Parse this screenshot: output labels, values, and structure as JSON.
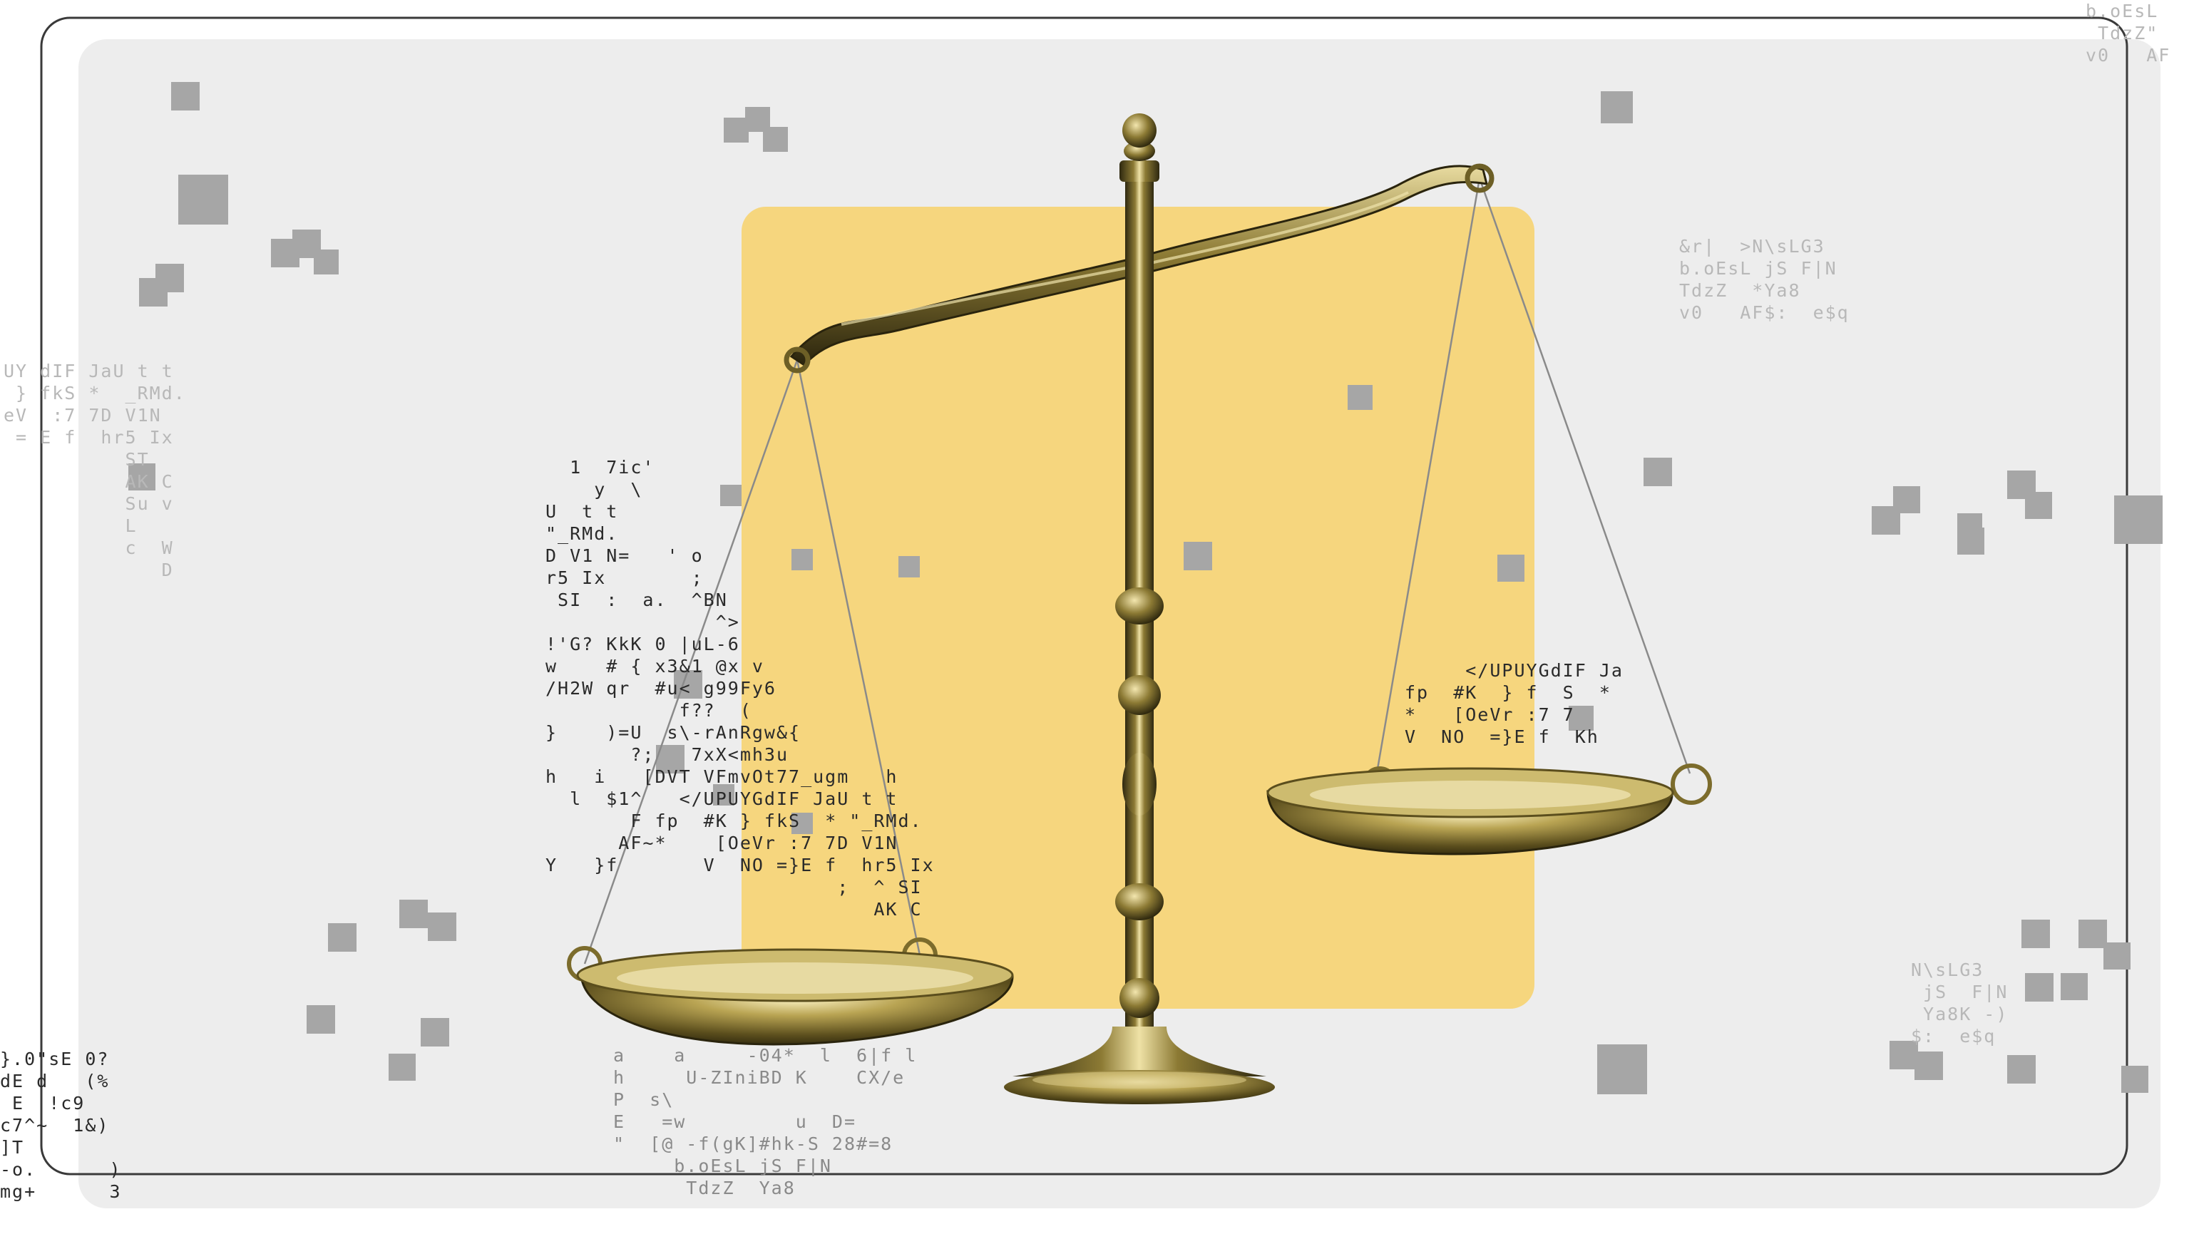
{
  "colors": {
    "page_background": "#ffffff",
    "panel_background": "#ededed",
    "panel_border": "#3a3a3a",
    "accent_yellow": "#f6d67e",
    "pixel_squares": "#a6a6a6",
    "glyph_dark": "#2a2a2a",
    "glyph_faint": "#c9c9c9",
    "brass_dark": "#3b3414",
    "brass_mid": "#8c7a34",
    "brass_light": "#e6d79a"
  },
  "illustration": {
    "subject": "balance-scale-icon",
    "tilt": "left-pan-lower",
    "glyph_clusters": {
      "left_pan": [
        "  1  7ic'",
        "    y  \\",
        "U  t t",
        "\"_RMd.",
        "D V1 N=   ' o",
        "r5 Ix       ;",
        " SI  :  a.  ^BN",
        "              ^>",
        "!'G? KkK 0 |uL-6",
        "w    # { x3&1 @x v",
        "/H2W qr  #u< g99Fy6",
        "           f??  (",
        "}    )=U  s\\-rAnRgw&{",
        "       ?;   7xX<mh3u",
        "h   i   [DVT VFmvOt77_ugm   h",
        "  l  $1^   </UPUYGdIF JaU t t",
        "       F fp  #K } fkS  * \"_RMd.",
        "      AF~*    [OeVr :7 7D V1N",
        "Y   }f       V  NO =}E f  hr5 Ix",
        "                        ;  ^ SI",
        "                           AK C"
      ],
      "right_pan": [
        "     </UPUYGdIF Ja",
        "fp  #K  } f  S  *",
        "*   [OeVr :7 7",
        "V  NO  =}E f  Kh"
      ],
      "bottom_center": [
        "a    a     -04*  l  6|f l",
        "h     U-ZIniBD K    CX/e",
        "P  s\\",
        "E   =w         u  D=",
        "\"  [@ -f(gK]#hk-S 28#=8",
        "     b.oEsL jS F|N",
        "      TdzZ  Ya8"
      ],
      "left_edge": [
        "}.0\"sE 0?",
        "dE d   (%",
        " E  !c9",
        "c7^~  1&)",
        "]T",
        "-o.      )",
        "mg+      3"
      ],
      "right_upper": [
        "&r|  >N\\sLG3",
        "b.oEsL jS F|N",
        "TdzZ  *Ya8",
        "v0   AF$:  e$q"
      ],
      "right_lower": [
        "N\\sLG3",
        " jS  F|N",
        " Ya8K -)",
        "$:  e$q"
      ],
      "top_right": [
        "b.oEsL",
        " TdzZ\"",
        "v0   AF"
      ],
      "left_mid": [
        "UY dIF JaU t t",
        " } fkS *  _RMd.",
        "eV  :7 7D V1N",
        " = E f  hr5 Ix",
        "          ST",
        "          AK C",
        "          Su v",
        "          L",
        "          c  W",
        "             D"
      ]
    }
  }
}
